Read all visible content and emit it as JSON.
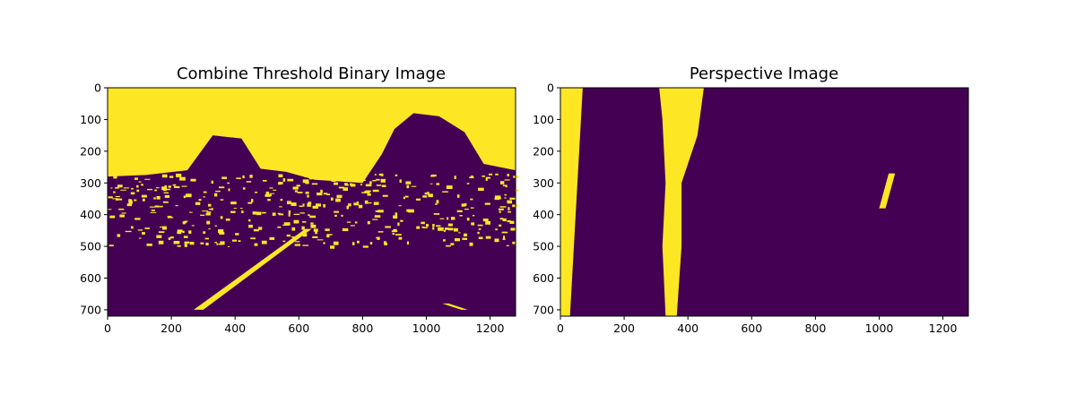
{
  "chart_data": [
    {
      "type": "heatmap",
      "title": "Combine Threshold Binary Image",
      "xlabel": "",
      "ylabel": "",
      "xlim": [
        0,
        1280
      ],
      "ylim": [
        720,
        0
      ],
      "x_ticks": [
        0,
        200,
        400,
        600,
        800,
        1000,
        1200
      ],
      "x_tick_labels": [
        "0",
        "200",
        "400",
        "600",
        "800",
        "1000",
        "1200"
      ],
      "y_ticks": [
        0,
        100,
        200,
        300,
        400,
        500,
        600,
        700
      ],
      "y_tick_labels": [
        "0",
        "100",
        "200",
        "300",
        "400",
        "500",
        "600",
        "700"
      ],
      "colors": {
        "zero": "#440154",
        "one": "#fde725"
      },
      "description_regions": {
        "sky_boundary": [
          [
            0,
            280
          ],
          [
            120,
            275
          ],
          [
            250,
            260
          ],
          [
            330,
            150
          ],
          [
            420,
            160
          ],
          [
            480,
            255
          ],
          [
            560,
            265
          ],
          [
            650,
            290
          ],
          [
            800,
            300
          ],
          [
            860,
            210
          ],
          [
            900,
            130
          ],
          [
            960,
            80
          ],
          [
            1040,
            90
          ],
          [
            1120,
            140
          ],
          [
            1180,
            240
          ],
          [
            1280,
            260
          ]
        ],
        "lane_left": [
          [
            270,
            700
          ],
          [
            300,
            700
          ],
          [
            640,
            445
          ],
          [
            620,
            445
          ]
        ],
        "lane_right": [
          [
            1050,
            680
          ],
          [
            1110,
            700
          ],
          [
            1130,
            700
          ],
          [
            1070,
            680
          ]
        ]
      }
    },
    {
      "type": "heatmap",
      "title": "Perspective Image",
      "xlabel": "",
      "ylabel": "",
      "xlim": [
        0,
        1280
      ],
      "ylim": [
        720,
        0
      ],
      "x_ticks": [
        0,
        200,
        400,
        600,
        800,
        1000,
        1200
      ],
      "x_tick_labels": [
        "0",
        "200",
        "400",
        "600",
        "800",
        "1000",
        "1200"
      ],
      "y_ticks": [
        0,
        100,
        200,
        300,
        400,
        500,
        600,
        700
      ],
      "y_tick_labels": [
        "0",
        "100",
        "200",
        "300",
        "400",
        "500",
        "600",
        "700"
      ],
      "colors": {
        "zero": "#440154",
        "one": "#fde725"
      },
      "description_regions": {
        "left_lane_band": [
          [
            310,
            0
          ],
          [
            450,
            0
          ],
          [
            430,
            150
          ],
          [
            380,
            300
          ],
          [
            380,
            500
          ],
          [
            365,
            720
          ],
          [
            330,
            720
          ],
          [
            320,
            500
          ],
          [
            330,
            300
          ],
          [
            320,
            100
          ]
        ],
        "far_left_streak": [
          [
            0,
            0
          ],
          [
            70,
            0
          ],
          [
            30,
            720
          ],
          [
            0,
            720
          ]
        ],
        "right_fragment": [
          [
            1030,
            270
          ],
          [
            1050,
            270
          ],
          [
            1020,
            380
          ],
          [
            1000,
            380
          ]
        ]
      }
    }
  ]
}
